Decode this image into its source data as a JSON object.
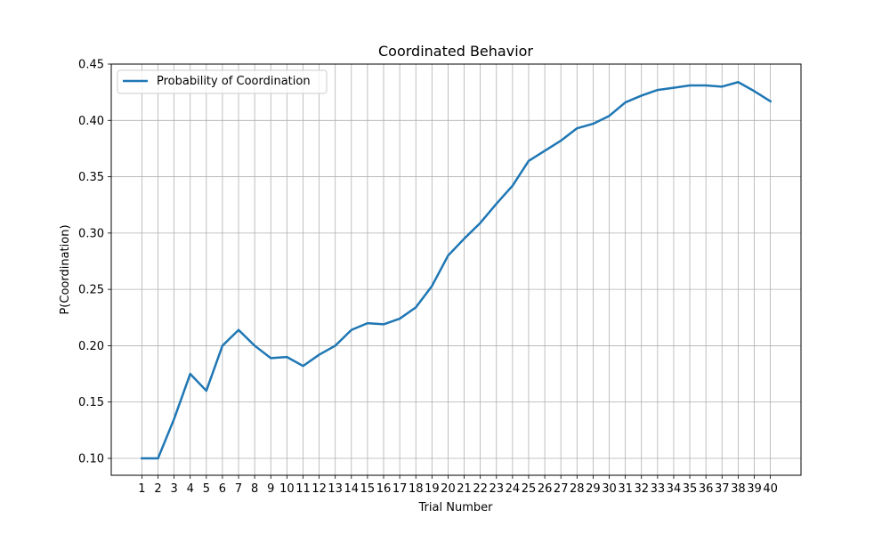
{
  "chart_data": {
    "type": "line",
    "title": "Coordinated Behavior",
    "xlabel": "Trial Number",
    "ylabel": "P(Coordination)",
    "x": [
      1,
      2,
      3,
      4,
      5,
      6,
      7,
      8,
      9,
      10,
      11,
      12,
      13,
      14,
      15,
      16,
      17,
      18,
      19,
      20,
      21,
      22,
      23,
      24,
      25,
      26,
      27,
      28,
      29,
      30,
      31,
      32,
      33,
      34,
      35,
      36,
      37,
      38,
      39,
      40
    ],
    "x_tick_labels": [
      "1",
      "2",
      "3",
      "4",
      "5",
      "6",
      "7",
      "8",
      "9",
      "10",
      "11",
      "12",
      "13",
      "14",
      "15",
      "16",
      "17",
      "18",
      "19",
      "20",
      "21",
      "22",
      "23",
      "24",
      "25",
      "26",
      "27",
      "28",
      "29",
      "30",
      "31",
      "32",
      "33",
      "34",
      "35",
      "36",
      "37",
      "38",
      "39",
      "40"
    ],
    "series": [
      {
        "name": "Probability of Coordination",
        "color": "#1f77b4",
        "values": [
          0.1,
          0.1,
          0.135,
          0.175,
          0.16,
          0.2,
          0.214,
          0.2,
          0.189,
          0.19,
          0.182,
          0.192,
          0.2,
          0.214,
          0.22,
          0.219,
          0.224,
          0.234,
          0.253,
          0.28,
          0.295,
          0.309,
          0.326,
          0.342,
          0.364,
          0.373,
          0.382,
          0.393,
          0.397,
          0.404,
          0.416,
          0.422,
          0.427,
          0.429,
          0.431,
          0.431,
          0.43,
          0.434,
          0.426,
          0.417
        ]
      }
    ],
    "ylim": [
      0.085,
      0.45
    ],
    "xlim": [
      -0.9,
      41.9
    ],
    "y_ticks": [
      0.1,
      0.15,
      0.2,
      0.25,
      0.3,
      0.35,
      0.4,
      0.45
    ],
    "y_tick_labels": [
      "0.10",
      "0.15",
      "0.20",
      "0.25",
      "0.30",
      "0.35",
      "0.40",
      "0.45"
    ],
    "grid": true,
    "legend": "upper left",
    "grid_color": "#b0b0b0"
  }
}
